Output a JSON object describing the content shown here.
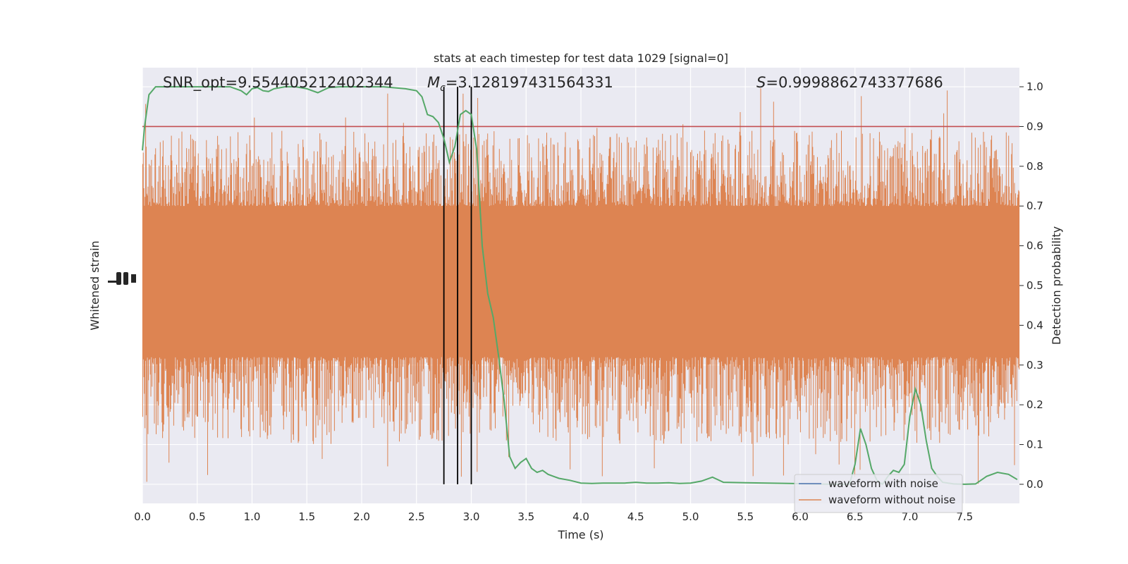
{
  "chart_data": {
    "type": "line",
    "title": "stats at each timestep for test data 1029 [signal=0]",
    "xlabel": "Time (s)",
    "ylabel_left": "Whitened strain",
    "ylabel_right": "Detection probability",
    "xlim": [
      0,
      8
    ],
    "ylim_right": [
      -0.048,
      1.048
    ],
    "x_ticks": [
      "0.0",
      "0.5",
      "1.0",
      "1.5",
      "2.0",
      "2.5",
      "3.0",
      "3.5",
      "4.0",
      "4.5",
      "5.0",
      "5.5",
      "6.0",
      "6.5",
      "7.0",
      "7.5"
    ],
    "y_ticks_right": [
      "0.0",
      "0.1",
      "0.2",
      "0.3",
      "0.4",
      "0.5",
      "0.6",
      "0.7",
      "0.8",
      "0.9",
      "1.0"
    ],
    "grid": true,
    "legend_position": "lower-right",
    "annotations": {
      "snr": "SNR_opt=9.554405212402344",
      "mc_symbol": "M",
      "mc_sub": "c",
      "mc_value": "=3.128197431564331",
      "s_symbol": "S",
      "s_value": "=0.9998862743377686"
    },
    "threshold": 0.9,
    "vlines": [
      2.75,
      2.875,
      3.0
    ],
    "series": [
      {
        "name": "waveform with noise",
        "color": "#4c72b0"
      },
      {
        "name": "waveform without noise",
        "color": "#dd8452",
        "band_core": [
          0.32,
          0.7
        ],
        "band_extent": [
          0.0,
          1.0
        ]
      },
      {
        "color": "#55a868",
        "x": [
          0,
          0.02,
          0.06,
          0.12,
          0.2,
          0.3,
          0.4,
          0.5,
          0.6,
          0.7,
          0.8,
          0.9,
          0.95,
          1.0,
          1.05,
          1.1,
          1.15,
          1.2,
          1.3,
          1.4,
          1.5,
          1.6,
          1.7,
          1.8,
          1.9,
          2.0,
          2.2,
          2.4,
          2.5,
          2.55,
          2.6,
          2.65,
          2.7,
          2.75,
          2.8,
          2.85,
          2.9,
          2.95,
          3.0,
          3.05,
          3.1,
          3.15,
          3.2,
          3.25,
          3.3,
          3.35,
          3.4,
          3.45,
          3.5,
          3.55,
          3.6,
          3.65,
          3.7,
          3.75,
          3.8,
          3.9,
          4.0,
          4.1,
          4.2,
          4.3,
          4.4,
          4.5,
          4.6,
          4.7,
          4.8,
          4.9,
          5.0,
          5.1,
          5.2,
          5.3,
          5.5,
          5.7,
          5.9,
          6.1,
          6.3,
          6.45,
          6.5,
          6.55,
          6.6,
          6.65,
          6.7,
          6.75,
          6.8,
          6.85,
          6.9,
          6.95,
          7.0,
          7.05,
          7.1,
          7.15,
          7.2,
          7.25,
          7.3,
          7.4,
          7.5,
          7.6,
          7.7,
          7.8,
          7.9,
          7.98
        ],
        "y": [
          0.84,
          0.9,
          0.98,
          1.0,
          1.0,
          1.0,
          1.0,
          1.0,
          1.0,
          1.0,
          1.0,
          0.99,
          0.98,
          0.995,
          0.998,
          0.99,
          0.988,
          0.995,
          1.0,
          1.0,
          0.995,
          0.985,
          0.998,
          1.0,
          1.0,
          1.0,
          1.0,
          0.995,
          0.99,
          0.975,
          0.93,
          0.925,
          0.91,
          0.87,
          0.81,
          0.85,
          0.93,
          0.94,
          0.93,
          0.84,
          0.6,
          0.48,
          0.42,
          0.32,
          0.21,
          0.07,
          0.04,
          0.055,
          0.065,
          0.04,
          0.03,
          0.035,
          0.025,
          0.02,
          0.015,
          0.01,
          0.003,
          0.002,
          0.003,
          0.003,
          0.003,
          0.005,
          0.003,
          0.003,
          0.004,
          0.002,
          0.003,
          0.008,
          0.018,
          0.005,
          0.004,
          0.003,
          0.002,
          0.001,
          0.0,
          0.0,
          0.05,
          0.14,
          0.1,
          0.04,
          0.01,
          0.0,
          0.02,
          0.035,
          0.03,
          0.05,
          0.17,
          0.24,
          0.2,
          0.11,
          0.04,
          0.02,
          0.005,
          0.001,
          0.0,
          0.001,
          0.02,
          0.03,
          0.025,
          0.012
        ]
      }
    ]
  }
}
